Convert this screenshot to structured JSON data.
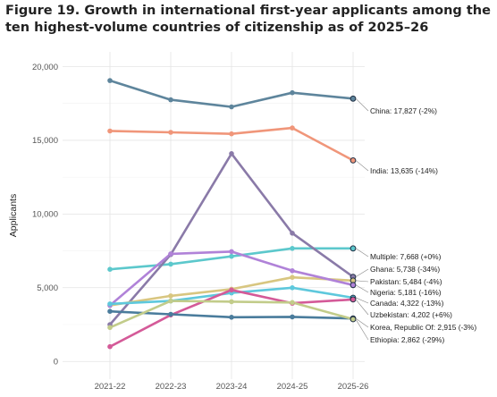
{
  "figure": {
    "title": "Figure 19. Growth in international first-year applicants among the ten highest-volume countries of citizenship as of 2025–26"
  },
  "chart_data": {
    "type": "line",
    "title": "Figure 19. Growth in international first-year applicants among the ten highest-volume countries of citizenship as of 2025–26",
    "xlabel": "",
    "ylabel": "Applicants",
    "categories": [
      "2021-22",
      "2022-23",
      "2023-24",
      "2024-25",
      "2025-26"
    ],
    "ylim": [
      -1200,
      21000
    ],
    "yticks": [
      0,
      5000,
      10000,
      15000,
      20000
    ],
    "ytick_labels": [
      "0",
      "5,000",
      "10,000",
      "15,000",
      "20,000"
    ],
    "grid": true,
    "legend": "direct labels at right end of each line",
    "series": [
      {
        "name": "China",
        "label": "China: 17,827 (-2%)",
        "color": "#5e859c",
        "values": [
          19050,
          17750,
          17270,
          18230,
          17827
        ]
      },
      {
        "name": "India",
        "label": "India: 13,635 (-14%)",
        "color": "#f0967a",
        "values": [
          15630,
          15540,
          15440,
          15840,
          13635
        ]
      },
      {
        "name": "Multiple",
        "label": "Multiple: 7,668 (+0%)",
        "color": "#5cc8cc",
        "values": [
          6250,
          6600,
          7130,
          7670,
          7668
        ]
      },
      {
        "name": "Ghana",
        "label": "Ghana: 5,738 (-34%)",
        "color": "#8a7aa8",
        "values": [
          2500,
          7250,
          14100,
          8700,
          5738
        ]
      },
      {
        "name": "Pakistan",
        "label": "Pakistan: 5,484 (-4%)",
        "color": "#d8c680",
        "values": [
          3800,
          4450,
          4900,
          5700,
          5484
        ]
      },
      {
        "name": "Nigeria",
        "label": "Nigeria: 5,181 (-16%)",
        "color": "#b082d8",
        "values": [
          3800,
          7300,
          7450,
          6150,
          5181
        ]
      },
      {
        "name": "Canada",
        "label": "Canada: 4,322 (-13%)",
        "color": "#5ec8dc",
        "values": [
          3900,
          4100,
          4650,
          5000,
          4322
        ]
      },
      {
        "name": "Uzbekistan",
        "label": "Uzbekistan: 4,202 (+6%)",
        "color": "#d45a98",
        "values": [
          1000,
          3150,
          4850,
          3950,
          4202
        ]
      },
      {
        "name": "Korea, Republic Of",
        "label": "Korea, Republic Of: 2,915 (-3%)",
        "color": "#4a7c9c",
        "values": [
          3400,
          3200,
          3000,
          3020,
          2915
        ]
      },
      {
        "name": "Ethiopia",
        "label": "Ethiopia: 2,862 (-29%)",
        "color": "#c2cc8a",
        "values": [
          2300,
          4100,
          4050,
          4000,
          2862
        ]
      }
    ]
  }
}
